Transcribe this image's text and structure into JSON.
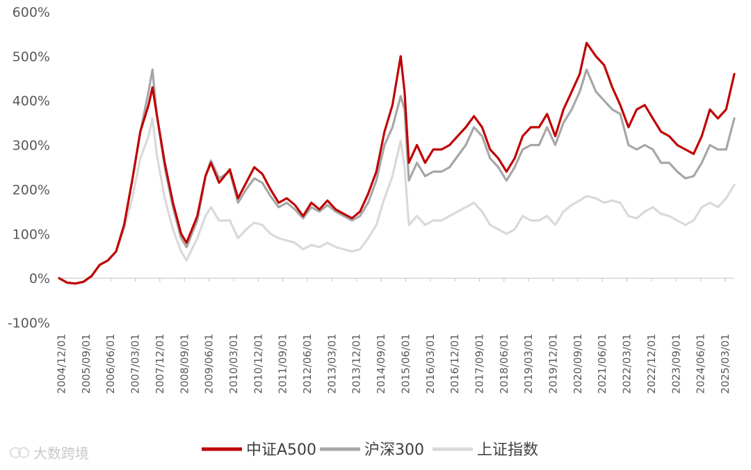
{
  "chart_data": {
    "type": "line",
    "title": "",
    "xlabel": "",
    "ylabel": "",
    "ylim": [
      -100,
      600
    ],
    "y_ticks": [
      "600%",
      "500%",
      "400%",
      "300%",
      "200%",
      "100%",
      "0%",
      "-100%"
    ],
    "y_tick_values": [
      600,
      500,
      400,
      300,
      200,
      100,
      0,
      -100
    ],
    "x_ticks": [
      "2004/12/01",
      "2005/09/01",
      "2006/06/01",
      "2007/03/01",
      "2007/12/01",
      "2008/09/01",
      "2009/06/01",
      "2010/03/01",
      "2010/12/01",
      "2011/09/01",
      "2012/06/01",
      "2013/03/01",
      "2013/12/01",
      "2014/09/01",
      "2015/06/01",
      "2016/03/01",
      "2016/12/01",
      "2017/09/01",
      "2018/06/01",
      "2019/03/01",
      "2019/12/01",
      "2020/09/01",
      "2021/06/01",
      "2022/03/01",
      "2022/12/01",
      "2023/09/01",
      "2024/06/01",
      "2025/03/01"
    ],
    "grid": false,
    "legend_position": "bottom",
    "x": [
      "2004/12/01",
      "2005/03/01",
      "2005/06/01",
      "2005/09/01",
      "2005/12/01",
      "2006/03/01",
      "2006/06/01",
      "2006/09/01",
      "2006/12/01",
      "2007/03/01",
      "2007/06/01",
      "2007/09/01",
      "2007/10/15",
      "2007/12/01",
      "2008/03/01",
      "2008/06/01",
      "2008/09/01",
      "2008/11/01",
      "2009/03/01",
      "2009/06/01",
      "2009/08/01",
      "2009/11/01",
      "2010/03/01",
      "2010/06/01",
      "2010/09/01",
      "2010/12/01",
      "2011/03/01",
      "2011/06/01",
      "2011/09/01",
      "2011/12/01",
      "2012/03/01",
      "2012/06/01",
      "2012/09/01",
      "2012/12/01",
      "2013/03/01",
      "2013/06/01",
      "2013/09/01",
      "2013/12/01",
      "2014/03/01",
      "2014/06/01",
      "2014/09/01",
      "2014/12/01",
      "2015/03/01",
      "2015/06/01",
      "2015/07/15",
      "2015/09/01",
      "2015/12/01",
      "2016/03/01",
      "2016/06/01",
      "2016/09/01",
      "2016/12/01",
      "2017/03/01",
      "2017/06/01",
      "2017/09/01",
      "2017/12/01",
      "2018/03/01",
      "2018/06/01",
      "2018/09/01",
      "2018/12/01",
      "2019/03/01",
      "2019/06/01",
      "2019/09/01",
      "2019/12/01",
      "2020/03/01",
      "2020/06/01",
      "2020/09/01",
      "2020/12/01",
      "2021/02/15",
      "2021/06/01",
      "2021/09/01",
      "2021/12/01",
      "2022/03/01",
      "2022/06/01",
      "2022/09/01",
      "2022/12/01",
      "2023/03/01",
      "2023/06/01",
      "2023/09/01",
      "2023/12/01",
      "2024/03/01",
      "2024/06/01",
      "2024/09/01",
      "2024/12/01",
      "2025/03/01",
      "2025/06/01",
      "2025/09/01"
    ],
    "series": [
      {
        "name": "中证A500",
        "color": "#c00000",
        "values": [
          0,
          -10,
          -12,
          -8,
          5,
          30,
          40,
          60,
          120,
          220,
          330,
          390,
          430,
          370,
          260,
          170,
          100,
          80,
          140,
          230,
          260,
          215,
          245,
          180,
          215,
          250,
          235,
          200,
          170,
          180,
          165,
          140,
          170,
          155,
          175,
          155,
          145,
          135,
          150,
          190,
          240,
          330,
          390,
          500,
          420,
          260,
          300,
          260,
          290,
          290,
          300,
          320,
          340,
          365,
          340,
          290,
          270,
          240,
          270,
          320,
          340,
          340,
          370,
          320,
          380,
          420,
          460,
          530,
          500,
          480,
          430,
          390,
          340,
          380,
          390,
          360,
          330,
          320,
          300,
          290,
          280,
          320,
          380,
          360,
          380,
          460
        ]
      },
      {
        "name": "沪深300",
        "color": "#a6a6a6",
        "values": [
          0,
          -10,
          -12,
          -8,
          5,
          30,
          40,
          60,
          120,
          220,
          330,
          420,
          470,
          370,
          250,
          160,
          90,
          70,
          130,
          230,
          265,
          225,
          240,
          170,
          200,
          225,
          215,
          185,
          160,
          170,
          155,
          135,
          160,
          150,
          165,
          150,
          140,
          130,
          140,
          170,
          220,
          300,
          340,
          410,
          380,
          220,
          260,
          230,
          240,
          240,
          250,
          275,
          300,
          340,
          320,
          270,
          250,
          220,
          250,
          290,
          300,
          300,
          340,
          300,
          350,
          380,
          420,
          470,
          420,
          400,
          380,
          370,
          300,
          290,
          300,
          290,
          260,
          260,
          240,
          225,
          230,
          260,
          300,
          290,
          290,
          360
        ]
      },
      {
        "name": "上证指数",
        "color": "#d9d9d9",
        "values": [
          0,
          -10,
          -12,
          -8,
          5,
          30,
          40,
          60,
          110,
          180,
          270,
          320,
          360,
          280,
          180,
          110,
          60,
          40,
          90,
          140,
          160,
          130,
          130,
          90,
          110,
          125,
          120,
          100,
          90,
          85,
          80,
          65,
          75,
          70,
          80,
          70,
          65,
          60,
          65,
          90,
          120,
          180,
          230,
          310,
          250,
          120,
          140,
          120,
          130,
          130,
          140,
          150,
          160,
          170,
          150,
          120,
          110,
          100,
          110,
          140,
          130,
          130,
          140,
          120,
          150,
          165,
          175,
          185,
          180,
          170,
          175,
          170,
          140,
          135,
          150,
          160,
          145,
          140,
          130,
          120,
          130,
          160,
          170,
          160,
          180,
          210
        ]
      }
    ]
  },
  "watermark": {
    "text": "大数跨境"
  }
}
